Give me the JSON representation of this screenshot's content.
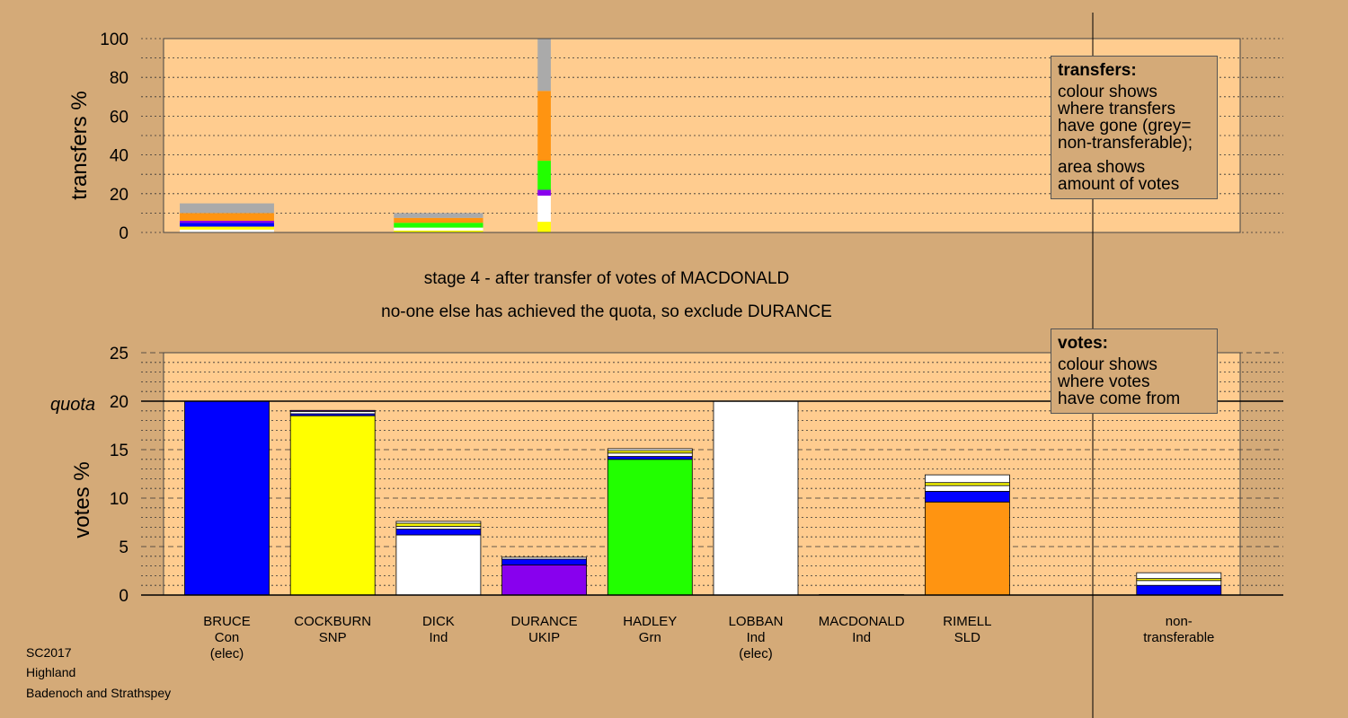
{
  "stage_title": "stage 4 - after transfer of votes of MACDONALD",
  "stage_subtitle": "no-one else has achieved the quota, so exclude DURANCE",
  "legend_transfers": {
    "title": "transfers:",
    "lines1": [
      "colour shows",
      "where transfers",
      "have gone (grey=",
      "non-transferable);"
    ],
    "lines2": [
      "area shows",
      "amount of votes"
    ]
  },
  "legend_votes": {
    "title": "votes:",
    "lines": [
      "colour shows",
      "where votes",
      "have come from"
    ]
  },
  "footer": [
    "SC2017",
    "Highland",
    "Badenoch and Strathspey"
  ],
  "colors": {
    "background": "#d4aa78",
    "plot": "#ffcc8f",
    "Con": "#0000ff",
    "SNP": "#ffff00",
    "Ind": "#ffffff",
    "UKIP": "#8800ee",
    "Grn": "#22ff00",
    "SLD": "#ff9411",
    "nontransferable": "#aaaaaa"
  },
  "chart_data": [
    {
      "type": "bar",
      "stacked": true,
      "ylabel": "transfers %",
      "ylim": [
        0,
        100
      ],
      "yticks": [
        0,
        20,
        40,
        60,
        80,
        100
      ],
      "columns": [
        {
          "width": 0.93,
          "segments": [
            [
              1.5,
              "Ind"
            ],
            [
              1.5,
              "SNP"
            ],
            [
              2.0,
              "Con"
            ],
            [
              1.0,
              "UKIP"
            ],
            [
              4.0,
              "SLD"
            ],
            [
              5.0,
              "nontransferable"
            ]
          ]
        },
        {
          "width": 0,
          "segments": []
        },
        {
          "width": 0.88,
          "segments": [
            [
              1.0,
              "SNP"
            ],
            [
              1.5,
              "Ind"
            ],
            [
              2.5,
              "Grn"
            ],
            [
              2.5,
              "SLD"
            ],
            [
              2.5,
              "nontransferable"
            ]
          ]
        },
        {
          "width": 0.13,
          "segments": [
            [
              5.5,
              "SNP"
            ],
            [
              13.5,
              "Ind"
            ],
            [
              3.0,
              "UKIP"
            ],
            [
              15.0,
              "Grn"
            ],
            [
              36.0,
              "SLD"
            ],
            [
              27.0,
              "nontransferable"
            ]
          ]
        }
      ]
    },
    {
      "type": "bar",
      "stacked": true,
      "ylabel": "votes %",
      "quota_label": "quota",
      "quota": 20,
      "ylim": [
        0,
        25
      ],
      "yticks": [
        0,
        5,
        10,
        15,
        20,
        25
      ],
      "categories": [
        {
          "name": "BRUCE",
          "party": "Con",
          "note": "(elec)"
        },
        {
          "name": "COCKBURN",
          "party": "SNP",
          "note": ""
        },
        {
          "name": "DICK",
          "party": "Ind",
          "note": ""
        },
        {
          "name": "DURANCE",
          "party": "UKIP",
          "note": ""
        },
        {
          "name": "HADLEY",
          "party": "Grn",
          "note": ""
        },
        {
          "name": "LOBBAN",
          "party": "Ind",
          "note": "(elec)"
        },
        {
          "name": "MACDONALD",
          "party": "Ind",
          "note": ""
        },
        {
          "name": "RIMELL",
          "party": "SLD",
          "note": ""
        },
        {
          "name": "",
          "party": "",
          "note": ""
        },
        {
          "name": "non-",
          "party": "transferable",
          "note": ""
        }
      ],
      "stacks": [
        [
          [
            20.0,
            "Con"
          ]
        ],
        [
          [
            18.5,
            "SNP"
          ],
          [
            0.2,
            "Con"
          ],
          [
            0.25,
            "Ind"
          ],
          [
            0.1,
            "UKIP"
          ]
        ],
        [
          [
            6.2,
            "Ind"
          ],
          [
            0.6,
            "Con"
          ],
          [
            0.3,
            "Ind"
          ],
          [
            0.3,
            "SNP"
          ],
          [
            0.2,
            "Ind"
          ]
        ],
        [
          [
            3.1,
            "UKIP"
          ],
          [
            0.6,
            "Con"
          ],
          [
            0.2,
            "Ind"
          ]
        ],
        [
          [
            14.0,
            "Grn"
          ],
          [
            0.3,
            "Con"
          ],
          [
            0.35,
            "Ind"
          ],
          [
            0.25,
            "SNP"
          ],
          [
            0.2,
            "Ind"
          ]
        ],
        [
          [
            20.0,
            "Ind"
          ]
        ],
        [
          [
            0.05,
            "Ind"
          ]
        ],
        [
          [
            9.6,
            "SLD"
          ],
          [
            1.1,
            "Con"
          ],
          [
            0.6,
            "Ind"
          ],
          [
            0.3,
            "SNP"
          ],
          [
            0.8,
            "Ind"
          ]
        ],
        [],
        [
          [
            1.0,
            "Con"
          ],
          [
            0.5,
            "Ind"
          ],
          [
            0.2,
            "SNP"
          ],
          [
            0.6,
            "Ind"
          ]
        ]
      ]
    }
  ]
}
